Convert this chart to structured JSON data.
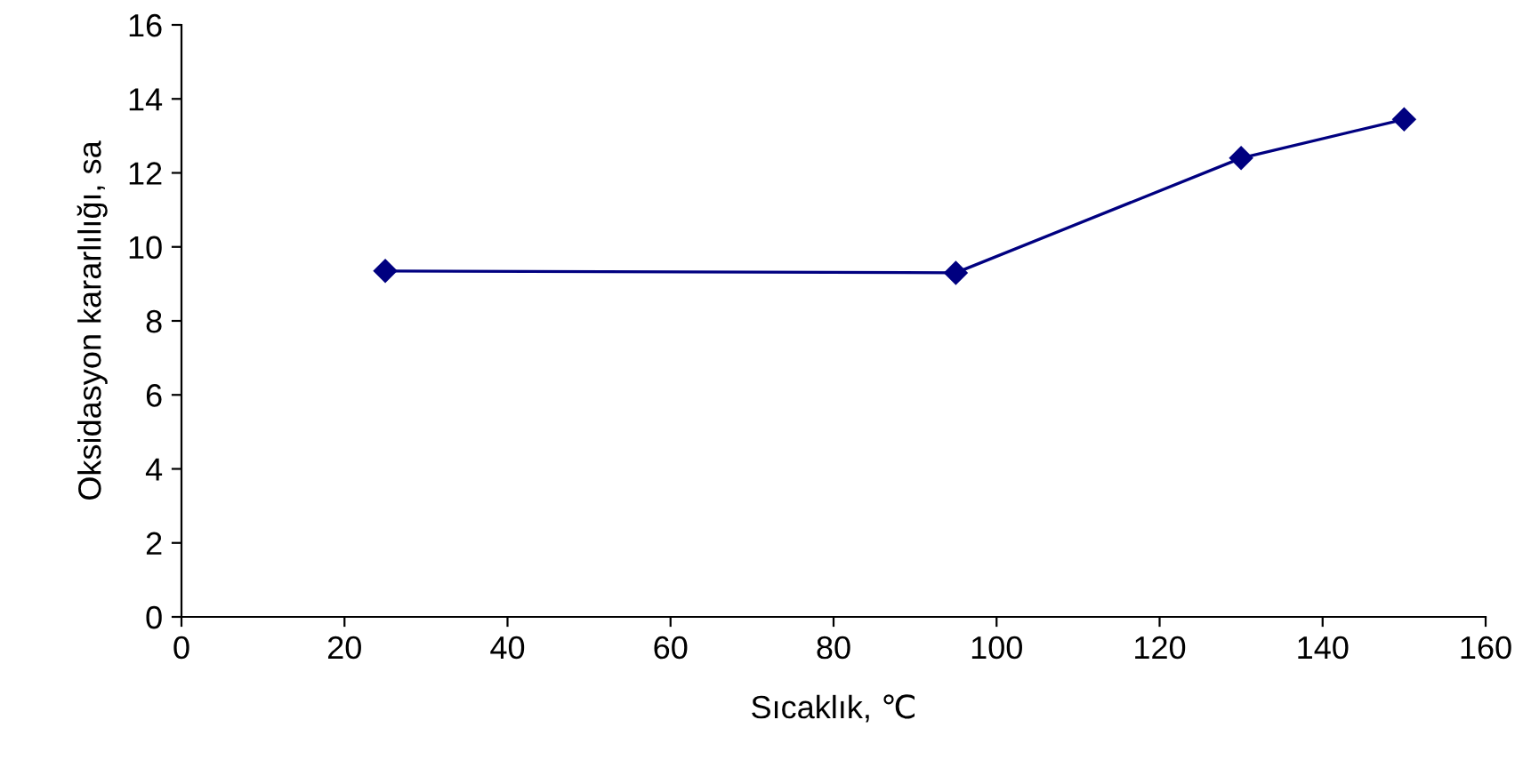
{
  "chart_data": {
    "type": "line",
    "xlabel": "Sıcaklık, ℃",
    "ylabel": "Oksidasyon kararlılığı, sa",
    "x": [
      25,
      95,
      130,
      150
    ],
    "series": [
      {
        "color": "#000080",
        "values": [
          9.35,
          9.3,
          12.4,
          13.45
        ]
      }
    ],
    "xlim": [
      0,
      160
    ],
    "xticks": [
      0,
      20,
      40,
      60,
      80,
      100,
      120,
      140,
      160
    ],
    "ylim": [
      0,
      16
    ],
    "yticks": [
      0,
      2,
      4,
      6,
      8,
      10,
      12,
      14,
      16
    ],
    "marker": "diamond",
    "line_style": "solid",
    "grid": false,
    "legend": false
  }
}
